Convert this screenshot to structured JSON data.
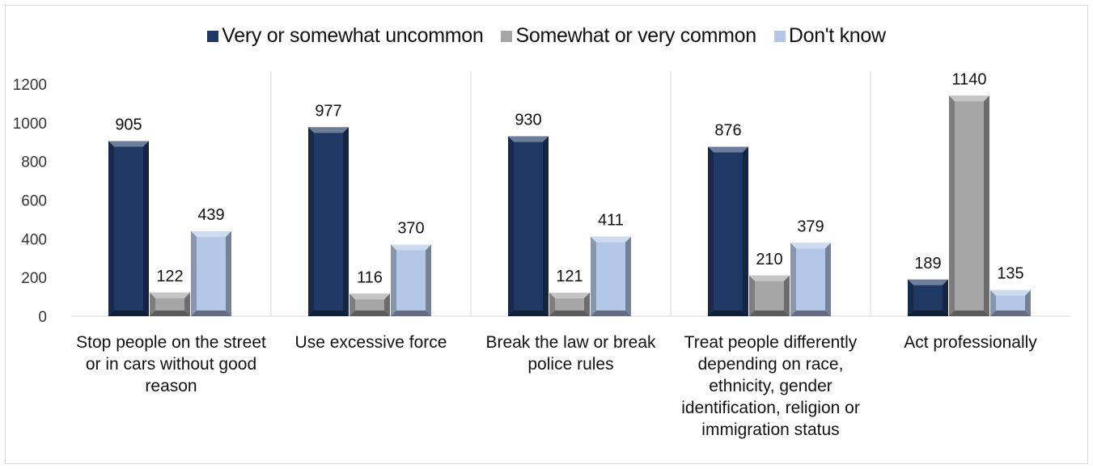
{
  "chart_data": {
    "type": "bar",
    "categories": [
      "Stop people on the street or in cars without good reason",
      "Use excessive force",
      "Break the law or break police rules",
      "Treat people differently depending on race, ethnicity, gender identification, religion or immigration status",
      "Act professionally"
    ],
    "series": [
      {
        "name": "Very or somewhat uncommon",
        "values": [
          905,
          977,
          930,
          876,
          189
        ],
        "color": "#1f3864"
      },
      {
        "name": "Somewhat or very common",
        "values": [
          122,
          116,
          121,
          210,
          1140
        ],
        "color": "#a6a6a6"
      },
      {
        "name": "Don't know",
        "values": [
          439,
          370,
          411,
          379,
          135
        ],
        "color": "#b4c7e7"
      }
    ],
    "ylim": [
      0,
      1200
    ],
    "yticks": [
      "0",
      "200",
      "400",
      "600",
      "800",
      "1000",
      "1200"
    ],
    "legend_position": "top",
    "grid": false,
    "category_separators": true
  }
}
